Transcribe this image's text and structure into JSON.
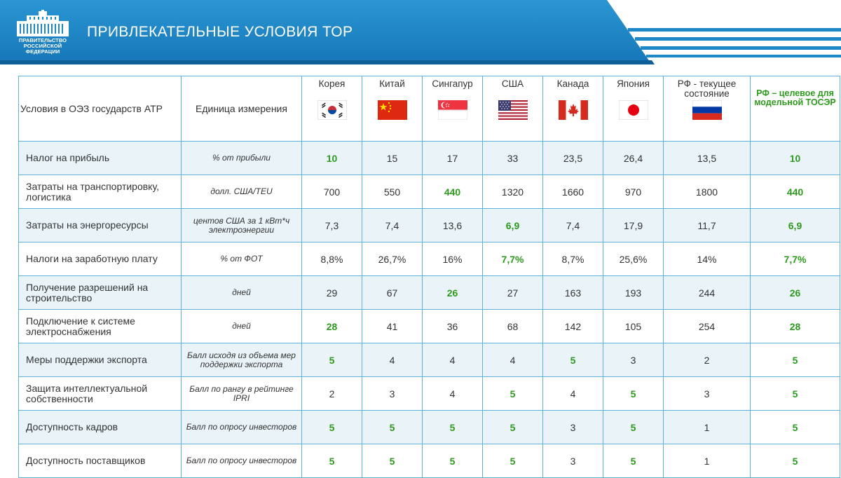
{
  "header": {
    "title": "ПРИВЛЕКАТЕЛЬНЫЕ УСЛОВИЯ ТОР",
    "logo_lines": [
      "ПРАВИТЕЛЬСТВО",
      "РОССИЙСКОЙ",
      "ФЕДЕРАЦИИ"
    ],
    "logo_icon": "government-building-icon"
  },
  "colors": {
    "header_blue": "#1e88c7",
    "accent_green": "#2e9a1e",
    "border": "#5cb3d8",
    "row_alt": "#eaf3f8"
  },
  "table": {
    "col_condition": "Условия в ОЭЗ государств АТР",
    "col_unit": "Единица измерения",
    "countries": [
      {
        "name": "Корея",
        "flag": "south-korea-flag-icon"
      },
      {
        "name": "Китай",
        "flag": "china-flag-icon"
      },
      {
        "name": "Сингапур",
        "flag": "singapore-flag-icon"
      },
      {
        "name": "США",
        "flag": "usa-flag-icon"
      },
      {
        "name": "Канада",
        "flag": "canada-flag-icon"
      },
      {
        "name": "Япония",
        "flag": "japan-flag-icon"
      },
      {
        "name": "РФ - текущее состояние",
        "flag": "russia-flag-icon"
      }
    ],
    "target_header": "РФ – целевое для модельной ТОСЭР",
    "rows": [
      {
        "condition": "Налог на прибыль",
        "unit": "% от прибыли",
        "values": [
          "10",
          "15",
          "17",
          "33",
          "23,5",
          "26,4",
          "13,5"
        ],
        "best": [
          0
        ],
        "target": "10"
      },
      {
        "condition": "Затраты на транспортировку, логистика",
        "unit": "долл. США/TEU",
        "values": [
          "700",
          "550",
          "440",
          "1320",
          "1660",
          "970",
          "1800"
        ],
        "best": [
          2
        ],
        "target": "440"
      },
      {
        "condition": "Затраты на энергоресурсы",
        "unit": "центов США за 1 кВт*ч электроэнергии",
        "values": [
          "7,3",
          "7,4",
          "13,6",
          "6,9",
          "7,4",
          "17,9",
          "11,7"
        ],
        "best": [
          3
        ],
        "target": "6,9"
      },
      {
        "condition": "Налоги на заработную плату",
        "unit": "% от ФОТ",
        "values": [
          "8,8%",
          "26,7%",
          "16%",
          "7,7%",
          "8,7%",
          "25,6%",
          "14%"
        ],
        "best": [
          3
        ],
        "target": "7,7%"
      },
      {
        "condition": "Получение разрешений на строительство",
        "unit": "дней",
        "values": [
          "29",
          "67",
          "26",
          "27",
          "163",
          "193",
          "244"
        ],
        "best": [
          2
        ],
        "target": "26"
      },
      {
        "condition": "Подключение к системе электроснабжения",
        "unit": "дней",
        "values": [
          "28",
          "41",
          "36",
          "68",
          "142",
          "105",
          "254"
        ],
        "best": [
          0
        ],
        "target": "28"
      },
      {
        "condition": "Меры поддержки экспорта",
        "unit": "Балл исходя из объема мер поддержки экспорта",
        "values": [
          "5",
          "4",
          "4",
          "4",
          "5",
          "3",
          "2"
        ],
        "best": [
          0,
          4
        ],
        "target": "5"
      },
      {
        "condition": "Защита интеллектуальной собственности",
        "unit": "Балл по рангу в рейтинге IPRI",
        "values": [
          "2",
          "3",
          "4",
          "5",
          "4",
          "5",
          "3"
        ],
        "best": [
          3,
          5
        ],
        "target": "5"
      },
      {
        "condition": "Доступность кадров",
        "unit": "Балл по опросу инвесторов",
        "values": [
          "5",
          "5",
          "5",
          "5",
          "3",
          "5",
          "1"
        ],
        "best": [
          0,
          1,
          2,
          3,
          5
        ],
        "target": "5"
      },
      {
        "condition": "Доступность поставщиков",
        "unit": "Балл по опросу инвесторов",
        "values": [
          "5",
          "5",
          "5",
          "5",
          "3",
          "5",
          "1"
        ],
        "best": [
          0,
          1,
          2,
          3,
          5
        ],
        "target": "5"
      }
    ]
  }
}
